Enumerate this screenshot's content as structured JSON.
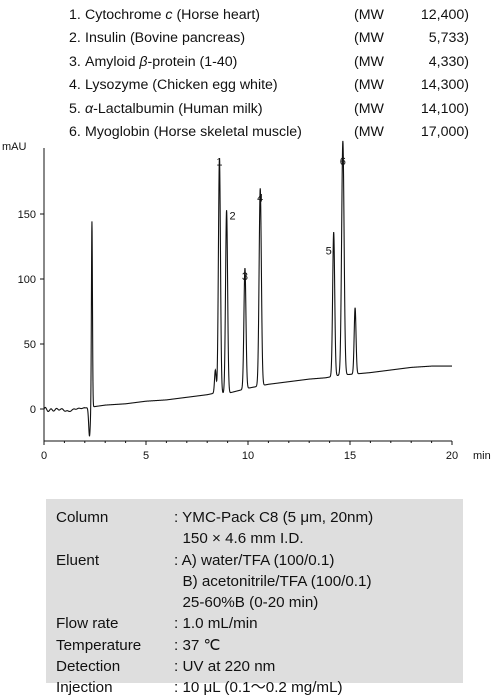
{
  "legend": [
    {
      "num": "1.",
      "name": "Cytochrome c (Horse heart)",
      "name_pre": "Cytochrome ",
      "name_ital": "c",
      "name_post": " (Horse heart)",
      "mw_prefix": "(MW",
      "mw_value": "12,400)"
    },
    {
      "num": "2.",
      "name": "Insulin (Bovine pancreas)",
      "name_pre": "Insulin (Bovine pancreas)",
      "name_ital": "",
      "name_post": "",
      "mw_prefix": "(MW",
      "mw_value": "5,733)"
    },
    {
      "num": "3.",
      "name": "Amyloid β-protein (1-40)",
      "name_pre": "Amyloid ",
      "name_ital": "β",
      "name_post": "-protein (1-40)",
      "mw_prefix": "(MW",
      "mw_value": "4,330)"
    },
    {
      "num": "4.",
      "name": "Lysozyme (Chicken egg white)",
      "name_pre": "Lysozyme (Chicken egg white)",
      "name_ital": "",
      "name_post": "",
      "mw_prefix": "(MW",
      "mw_value": "14,300)"
    },
    {
      "num": "5.",
      "name": "α-Lactalbumin (Human milk)",
      "name_pre": "",
      "name_ital": "α",
      "name_post": "-Lactalbumin (Human milk)",
      "mw_prefix": "(MW",
      "mw_value": "14,100)"
    },
    {
      "num": "6.",
      "name": "Myoglobin (Horse skeletal muscle)",
      "name_pre": "Myoglobin (Horse skeletal muscle)",
      "name_ital": "",
      "name_post": "",
      "mw_prefix": "(MW",
      "mw_value": "17,000)"
    }
  ],
  "chart_data": {
    "type": "line",
    "title": "",
    "xlabel": "min",
    "ylabel": "mAU",
    "xlim": [
      0,
      20
    ],
    "ylim": [
      -20,
      185
    ],
    "x_ticks": [
      0,
      5,
      10,
      15,
      20
    ],
    "y_ticks": [
      0,
      50,
      100,
      150
    ],
    "grid": false,
    "line_color": "#111111",
    "baseline": [
      [
        0,
        0
      ],
      [
        0.3,
        -1
      ],
      [
        0.8,
        0
      ],
      [
        1.2,
        -2
      ],
      [
        1.5,
        0
      ],
      [
        2.1,
        1
      ],
      [
        3,
        3
      ],
      [
        4,
        4
      ],
      [
        5,
        6
      ],
      [
        6,
        7
      ],
      [
        7,
        9
      ],
      [
        8,
        11
      ],
      [
        8.3,
        12
      ],
      [
        9,
        12
      ],
      [
        9.5,
        14
      ],
      [
        10,
        16
      ],
      [
        11,
        19
      ],
      [
        12,
        21
      ],
      [
        13,
        23
      ],
      [
        13.8,
        24
      ],
      [
        14.5,
        26
      ],
      [
        15.3,
        27
      ],
      [
        16,
        28
      ],
      [
        17,
        30
      ],
      [
        18,
        32
      ],
      [
        19,
        33
      ],
      [
        20,
        33
      ]
    ],
    "system_peak": {
      "rt": 2.35,
      "height": 143,
      "dip": -22
    },
    "peaks": [
      {
        "label": "1",
        "rt": 8.6,
        "height": 181,
        "width": 0.05
      },
      {
        "label": "2",
        "rt": 8.95,
        "height": 141,
        "width": 0.05
      },
      {
        "label": "3",
        "rt": 9.85,
        "height": 93,
        "width": 0.05
      },
      {
        "label": "4",
        "rt": 10.6,
        "height": 152,
        "width": 0.055
      },
      {
        "label": "5",
        "rt": 14.2,
        "height": 111,
        "width": 0.05
      },
      {
        "label": "6",
        "rt": 14.65,
        "height": 180,
        "width": 0.06
      }
    ],
    "minor_peaks": [
      {
        "rt": 8.4,
        "height": 18,
        "width": 0.04
      },
      {
        "rt": 15.25,
        "height": 51,
        "width": 0.045
      }
    ]
  },
  "conditions": [
    {
      "label": "Column",
      "values": [
        ": YMC-Pack C8 (5 μm, 20nm)",
        "  150 × 4.6 mm I.D."
      ]
    },
    {
      "label": "Eluent",
      "values": [
        ": A) water/TFA (100/0.1)",
        "  B) acetonitrile/TFA (100/0.1)",
        "  25-60%B (0-20 min)"
      ]
    },
    {
      "label": "Flow rate",
      "values": [
        ": 1.0 mL/min"
      ]
    },
    {
      "label": "Temperature",
      "values": [
        ": 37 ℃"
      ]
    },
    {
      "label": "Detection",
      "values": [
        ": UV at 220 nm"
      ]
    },
    {
      "label": "Injection",
      "values": [
        ": 10 μL (0.1～0.2 mg/mL)"
      ]
    }
  ]
}
